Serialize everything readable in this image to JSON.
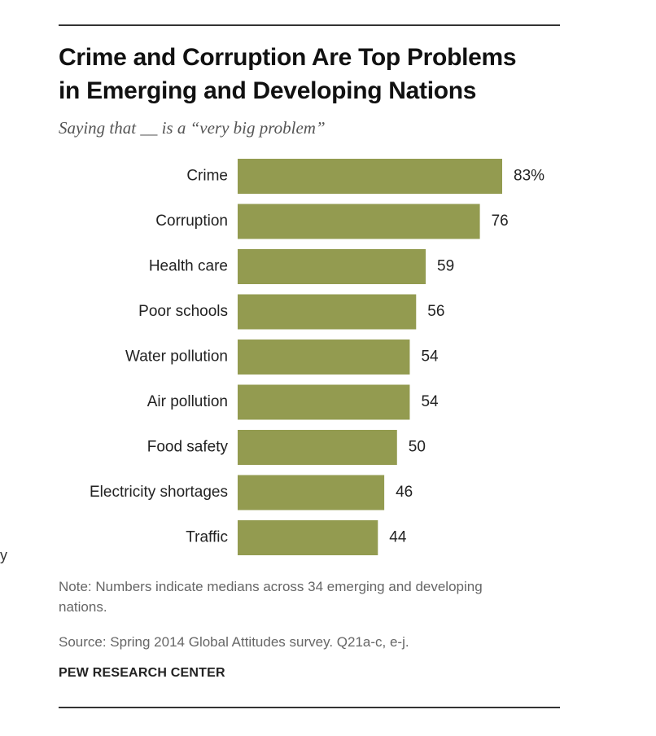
{
  "header": {
    "title_line1": "Crime and Corruption Are Top Problems",
    "title_line2": "in Emerging and Developing Nations",
    "subtitle": "Saying that __ is a “very big problem”"
  },
  "chart_data": {
    "type": "bar",
    "orientation": "horizontal",
    "title": "Crime and Corruption Are Top Problems in Emerging and Developing Nations",
    "subtitle": "Saying that __ is a “very big problem”",
    "categories": [
      "Crime",
      "Corruption",
      "Health care",
      "Poor schools",
      "Water pollution",
      "Air pollution",
      "Food safety",
      "Electricity shortages",
      "Traffic"
    ],
    "values": [
      83,
      76,
      59,
      56,
      54,
      54,
      50,
      46,
      44
    ],
    "value_labels": [
      "83%",
      "76",
      "59",
      "56",
      "54",
      "54",
      "50",
      "46",
      "44"
    ],
    "xlim": [
      0,
      83
    ],
    "xlabel": "",
    "ylabel": "",
    "grid": false,
    "legend": "none",
    "bar_color": "#939b50"
  },
  "footer": {
    "note": "Note: Numbers indicate medians across 34 emerging and developing nations.",
    "source": "Source: Spring 2014 Global Attitudes survey. Q21a-c, e-j.",
    "credit": "PEW RESEARCH CENTER"
  },
  "stray_mark": "y"
}
